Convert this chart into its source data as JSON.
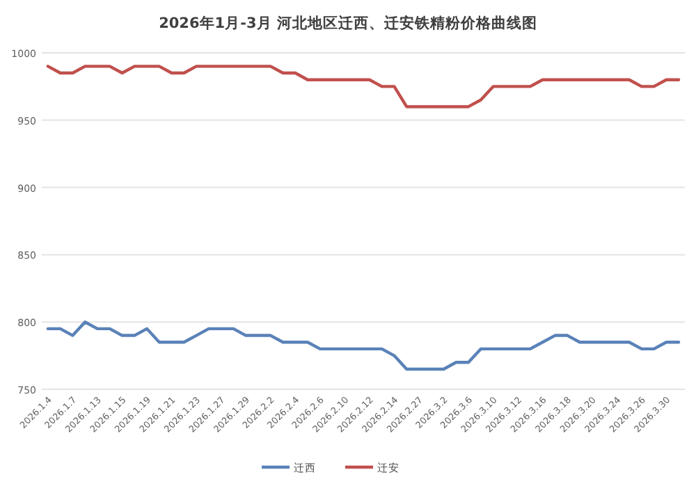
{
  "chart_data": {
    "type": "line",
    "title": "2026年1月-3月 河北地区迁西、迁安铁精粉价格曲线图",
    "categories": [
      "2026.1.4",
      null,
      "2026.1.7",
      null,
      "2026.1.13",
      null,
      "2026.1.15",
      null,
      "2026.1.19",
      null,
      "2026.1.21",
      null,
      "2026.1.23",
      null,
      "2026.1.27",
      null,
      "2026.1.29",
      null,
      "2026.2.2",
      null,
      "2026.2.4",
      null,
      "2026.2.6",
      null,
      "2026.2.10",
      null,
      "2026.2.12",
      null,
      "2026.2.14",
      null,
      "2026.2.27",
      null,
      "2026.3.2",
      null,
      "2026.3.6",
      null,
      "2026.3.10",
      null,
      "2026.3.12",
      null,
      "2026.3.16",
      null,
      "2026.3.18",
      null,
      "2026.3.20",
      null,
      "2026.3.24",
      null,
      "2026.3.26",
      null,
      "2026.3.30",
      null
    ],
    "series": [
      {
        "name": "迁西",
        "color": "#5a82b8",
        "values": [
          795,
          795,
          790,
          800,
          795,
          795,
          790,
          790,
          795,
          785,
          785,
          785,
          790,
          795,
          795,
          795,
          790,
          790,
          790,
          785,
          785,
          785,
          780,
          780,
          780,
          780,
          780,
          780,
          775,
          765,
          765,
          765,
          765,
          770,
          770,
          780,
          780,
          780,
          780,
          780,
          785,
          790,
          790,
          785,
          785,
          785,
          785,
          785,
          780,
          780,
          785,
          785
        ]
      },
      {
        "name": "迁安",
        "color": "#c0504d",
        "values": [
          990,
          985,
          985,
          990,
          990,
          990,
          985,
          990,
          990,
          990,
          985,
          985,
          990,
          990,
          990,
          990,
          990,
          990,
          990,
          985,
          985,
          980,
          980,
          980,
          980,
          980,
          980,
          975,
          975,
          960,
          960,
          960,
          960,
          960,
          960,
          965,
          975,
          975,
          975,
          975,
          980,
          980,
          980,
          980,
          980,
          980,
          980,
          980,
          975,
          975,
          980,
          980
        ]
      }
    ],
    "ylim": [
      750,
      1000
    ],
    "yticks": [
      750,
      800,
      850,
      900,
      950,
      1000
    ],
    "grid": "y",
    "legend": "bottom",
    "marker": "none",
    "line_style": "solid"
  }
}
